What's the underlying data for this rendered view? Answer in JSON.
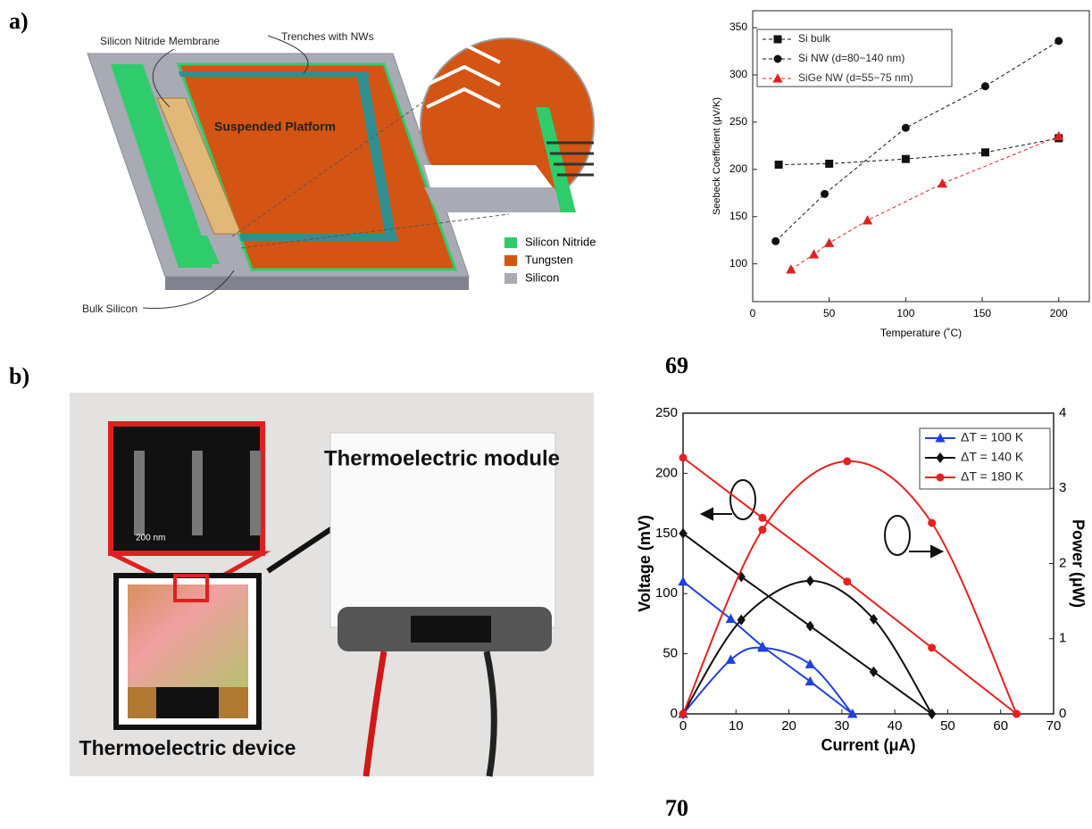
{
  "panels": {
    "a": "a)",
    "b": "b)",
    "ref_a": "69",
    "ref_b": "70"
  },
  "diagram": {
    "membrane": "Silicon Nitride Membrane",
    "trenches": "Trenches with NWs",
    "platform": "Suspended Platform",
    "bulk": "Bulk Silicon",
    "legend": [
      "Silicon Nitride",
      "Tungsten",
      "Silicon"
    ]
  },
  "photo": {
    "module": "Thermoelectric module",
    "device": "Thermoelectric device",
    "scale": "200 nm"
  },
  "chart_data": [
    {
      "type": "line",
      "x_label": "Temperature (˚C)",
      "y_label": "Seebeck Coefficient (μV/K)",
      "xlim": [
        0,
        220
      ],
      "xticks": [
        0,
        50,
        100,
        150,
        200
      ],
      "ylim": [
        60,
        368
      ],
      "yticks": [
        100,
        150,
        200,
        250,
        300,
        350
      ],
      "legend": "upper left",
      "series": [
        {
          "name": "Si bulk",
          "color": "#111111",
          "marker": "square",
          "x": [
            17,
            50,
            100,
            152,
            200
          ],
          "values": [
            205,
            206,
            211,
            218,
            233
          ]
        },
        {
          "name": "Si NW (d=80−140 nm)",
          "color": "#111111",
          "marker": "circle",
          "x": [
            15,
            47,
            100,
            152,
            200
          ],
          "values": [
            124,
            174,
            244,
            288,
            336
          ]
        },
        {
          "name": "SiGe NW (d=55−75 nm)",
          "color": "#e02020",
          "marker": "triangle",
          "x": [
            25,
            40,
            50,
            75,
            124,
            200
          ],
          "values": [
            94,
            110,
            122,
            146,
            185,
            235
          ]
        }
      ]
    },
    {
      "type": "line",
      "x_label": "Current (μA)",
      "y_label": "Voltage (mV)",
      "y2_label": "Power (μW)",
      "xlim": [
        0,
        70
      ],
      "xticks": [
        0,
        10,
        20,
        30,
        40,
        50,
        60,
        70
      ],
      "ylim": [
        0,
        250
      ],
      "yticks": [
        0,
        50,
        100,
        150,
        200,
        250
      ],
      "y2lim": [
        0,
        4
      ],
      "y2ticks": [
        0,
        1,
        2,
        3,
        4
      ],
      "legend": "upper right",
      "series": [
        {
          "name": "ΔT = 100 K",
          "color": "#1f3fe0",
          "marker": "triangle",
          "x": [
            0,
            9,
            15,
            24,
            32
          ],
          "values": [
            110,
            79,
            56,
            27,
            0
          ],
          "power": [
            0,
            0.72,
            0.88,
            0.66,
            0
          ]
        },
        {
          "name": "ΔT = 140 K",
          "color": "#111111",
          "marker": "diamond",
          "x": [
            0,
            11,
            24,
            36,
            47
          ],
          "values": [
            150,
            114,
            73,
            35,
            0
          ],
          "power": [
            0,
            1.25,
            1.77,
            1.26,
            0
          ]
        },
        {
          "name": "ΔT = 180 K",
          "color": "#e82020",
          "marker": "circle",
          "x": [
            0,
            15,
            31,
            47,
            63
          ],
          "values": [
            213,
            163,
            110,
            55,
            0
          ],
          "power": [
            0,
            2.45,
            3.36,
            2.54,
            0
          ]
        }
      ]
    }
  ]
}
